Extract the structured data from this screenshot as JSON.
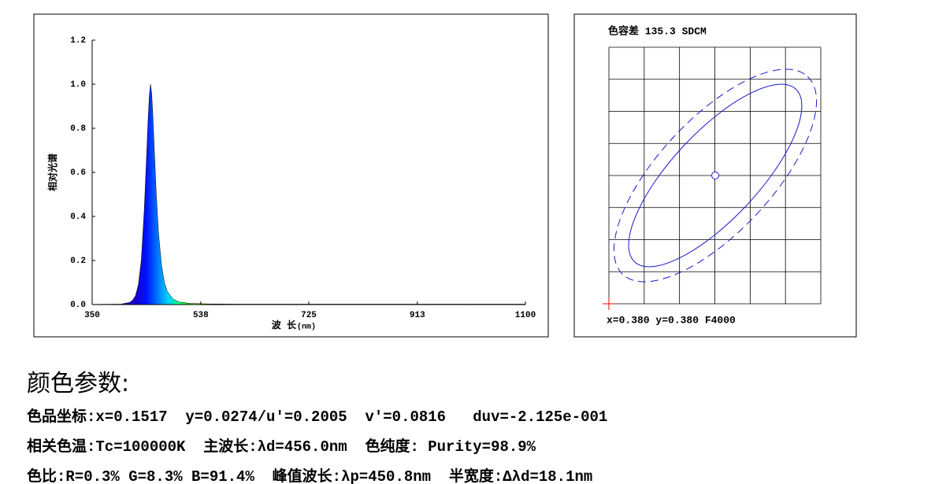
{
  "chart_data": [
    {
      "type": "area",
      "y_label": "相对光谱",
      "x_label": "波 长",
      "x_unit": "(nm)",
      "x": [
        350,
        400,
        415,
        420,
        425,
        430,
        435,
        440,
        444,
        447,
        449,
        451,
        453,
        455,
        458,
        461,
        465,
        470,
        475,
        480,
        490,
        500,
        520,
        550,
        600,
        700,
        800,
        900,
        1000,
        1100
      ],
      "values": [
        0.001,
        0.002,
        0.01,
        0.02,
        0.04,
        0.09,
        0.2,
        0.42,
        0.66,
        0.85,
        0.95,
        1.0,
        0.96,
        0.86,
        0.68,
        0.5,
        0.32,
        0.18,
        0.1,
        0.06,
        0.025,
        0.012,
        0.005,
        0.003,
        0.002,
        0.002,
        0.002,
        0.002,
        0.002,
        0.002
      ],
      "xlim": [
        350,
        1100
      ],
      "xticks": [
        350,
        538,
        725,
        913,
        1100
      ],
      "ylim": [
        0,
        1.2
      ],
      "yticks": [
        {
          "value": 0,
          "label": "0.0"
        },
        0.2,
        0.4,
        0.6,
        0.8,
        {
          "value": 1,
          "label": "1.0"
        },
        1.2
      ]
    },
    {
      "type": "tolerance",
      "title": "色容差 135.3 SDCM",
      "caption": "x=0.380 y=0.380 F4000"
    }
  ],
  "parameters": {
    "heading": "颜色参数:",
    "lines": [
      "色品坐标:x=0.1517  y=0.0274/u'=0.2005  v'=0.0816   duv=-2.125e-001",
      "相关色温:Tc=100000K  主波长:λd=456.0nm  色纯度: Purity=98.9%",
      "色比:R=0.3% G=8.3% B=91.4%  峰值波长:λp=450.8nm  半宽度:Δλd=18.1nm"
    ]
  }
}
